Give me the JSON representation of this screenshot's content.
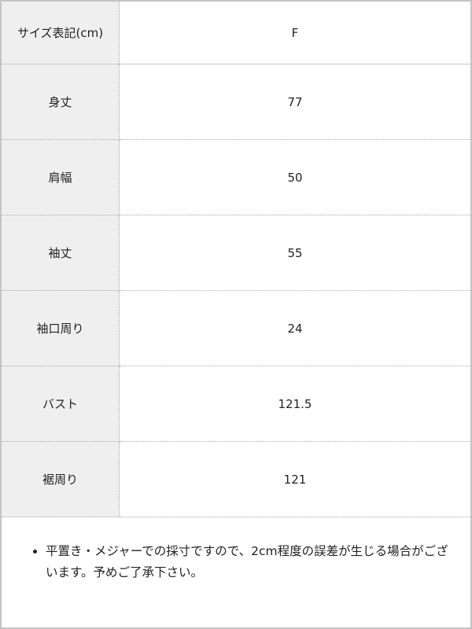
{
  "table": {
    "header": {
      "label": "サイズ表記(cm)",
      "value": "F"
    },
    "rows": [
      {
        "label": "身丈",
        "value": "77"
      },
      {
        "label": "肩幅",
        "value": "50"
      },
      {
        "label": "袖丈",
        "value": "55"
      },
      {
        "label": "袖口周り",
        "value": "24"
      },
      {
        "label": "バスト",
        "value": "121.5"
      },
      {
        "label": "裾周り",
        "value": "121"
      }
    ]
  },
  "notes": [
    "平置き・メジャーでの採寸ですので、2cm程度の誤差が生じる場合がございます。予めご了承下さい。"
  ]
}
